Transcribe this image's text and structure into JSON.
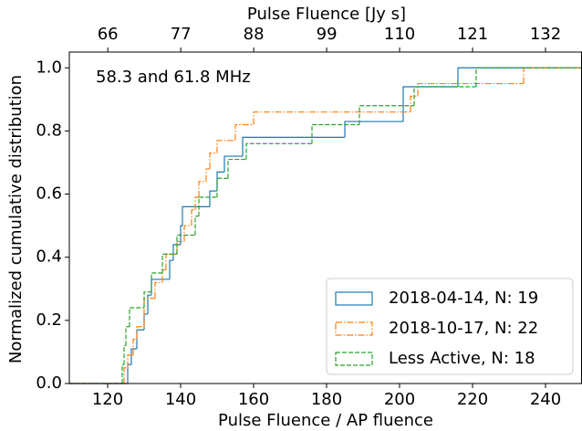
{
  "chart_data": {
    "type": "step",
    "xlabel": "Pulse Fluence / AP fluence",
    "ylabel": "Normalized cumulative distribution",
    "x2label": "Pulse Fluence [Jy s]",
    "annotation": "58.3 and 61.8 MHz",
    "xlim": [
      109.5,
      250
    ],
    "xticks": [
      120,
      140,
      160,
      180,
      200,
      220,
      240
    ],
    "x2lim": [
      60.2,
      137.5
    ],
    "x2ticks": [
      66,
      77,
      88,
      99,
      110,
      121,
      132
    ],
    "ylim": [
      0,
      1.05
    ],
    "yticks": [
      {
        "value": 0,
        "label": "0.0"
      },
      {
        "value": 0.2,
        "label": "0.2"
      },
      {
        "value": 0.4,
        "label": "0.4"
      },
      {
        "value": 0.6,
        "label": "0.6"
      },
      {
        "value": 0.8,
        "label": "0.8"
      },
      {
        "value": 1,
        "label": "1.0"
      }
    ],
    "legend": "lower right",
    "series": [
      {
        "name": "2018-04-14, N: 19",
        "color": "#1f77b4",
        "linestyle": "solid",
        "x": [
          125.5,
          126.5,
          128,
          130,
          131,
          132,
          137,
          138,
          140,
          140.5,
          148,
          150,
          152,
          157,
          185,
          201,
          216
        ],
        "values": [
          0.06,
          0.11,
          0.17,
          0.22,
          0.28,
          0.33,
          0.39,
          0.44,
          0.5,
          0.56,
          0.61,
          0.67,
          0.72,
          0.78,
          0.83,
          0.94,
          1.0
        ]
      },
      {
        "name": "2018-10-17, N: 22",
        "color": "#ff7f0e",
        "linestyle": "dashdot",
        "x": [
          124.5,
          125.5,
          127,
          128,
          130,
          133,
          135,
          136,
          139,
          141,
          143,
          144,
          145,
          147,
          148,
          150,
          155,
          160,
          203,
          205,
          234
        ],
        "values": [
          0.05,
          0.09,
          0.14,
          0.18,
          0.27,
          0.32,
          0.36,
          0.41,
          0.45,
          0.5,
          0.55,
          0.59,
          0.64,
          0.68,
          0.73,
          0.77,
          0.82,
          0.86,
          0.91,
          0.95,
          1.0
        ]
      },
      {
        "name": "Less Active, N: 18",
        "color": "#2ca02c",
        "linestyle": "dashed",
        "x": [
          124,
          124.5,
          125,
          126,
          130,
          132,
          135,
          139,
          144,
          145,
          150,
          153,
          158,
          176,
          189,
          204,
          221
        ],
        "values": [
          0.06,
          0.12,
          0.18,
          0.24,
          0.29,
          0.35,
          0.41,
          0.47,
          0.53,
          0.59,
          0.65,
          0.71,
          0.76,
          0.82,
          0.88,
          0.94,
          1.0
        ]
      }
    ]
  }
}
